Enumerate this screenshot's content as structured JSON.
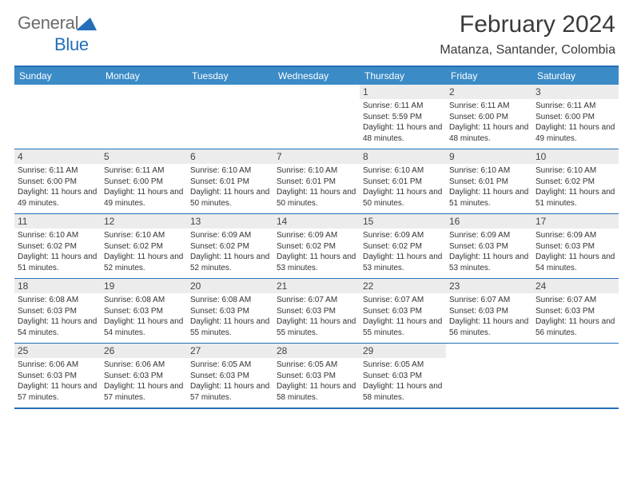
{
  "logo": {
    "word1": "General",
    "word2": "Blue"
  },
  "header": {
    "month_title": "February 2024",
    "location": "Matanza, Santander, Colombia"
  },
  "colors": {
    "accent": "#246eb9",
    "header_bg": "#3b8bc7",
    "daynum_bg": "#ececec",
    "text": "#333333",
    "logo_gray": "#6b6b6b",
    "background": "#ffffff"
  },
  "dow": [
    "Sunday",
    "Monday",
    "Tuesday",
    "Wednesday",
    "Thursday",
    "Friday",
    "Saturday"
  ],
  "weeks": [
    [
      {
        "n": "",
        "sr": "",
        "ss": "",
        "dl": ""
      },
      {
        "n": "",
        "sr": "",
        "ss": "",
        "dl": ""
      },
      {
        "n": "",
        "sr": "",
        "ss": "",
        "dl": ""
      },
      {
        "n": "",
        "sr": "",
        "ss": "",
        "dl": ""
      },
      {
        "n": "1",
        "sr": "Sunrise: 6:11 AM",
        "ss": "Sunset: 5:59 PM",
        "dl": "Daylight: 11 hours and 48 minutes."
      },
      {
        "n": "2",
        "sr": "Sunrise: 6:11 AM",
        "ss": "Sunset: 6:00 PM",
        "dl": "Daylight: 11 hours and 48 minutes."
      },
      {
        "n": "3",
        "sr": "Sunrise: 6:11 AM",
        "ss": "Sunset: 6:00 PM",
        "dl": "Daylight: 11 hours and 49 minutes."
      }
    ],
    [
      {
        "n": "4",
        "sr": "Sunrise: 6:11 AM",
        "ss": "Sunset: 6:00 PM",
        "dl": "Daylight: 11 hours and 49 minutes."
      },
      {
        "n": "5",
        "sr": "Sunrise: 6:11 AM",
        "ss": "Sunset: 6:00 PM",
        "dl": "Daylight: 11 hours and 49 minutes."
      },
      {
        "n": "6",
        "sr": "Sunrise: 6:10 AM",
        "ss": "Sunset: 6:01 PM",
        "dl": "Daylight: 11 hours and 50 minutes."
      },
      {
        "n": "7",
        "sr": "Sunrise: 6:10 AM",
        "ss": "Sunset: 6:01 PM",
        "dl": "Daylight: 11 hours and 50 minutes."
      },
      {
        "n": "8",
        "sr": "Sunrise: 6:10 AM",
        "ss": "Sunset: 6:01 PM",
        "dl": "Daylight: 11 hours and 50 minutes."
      },
      {
        "n": "9",
        "sr": "Sunrise: 6:10 AM",
        "ss": "Sunset: 6:01 PM",
        "dl": "Daylight: 11 hours and 51 minutes."
      },
      {
        "n": "10",
        "sr": "Sunrise: 6:10 AM",
        "ss": "Sunset: 6:02 PM",
        "dl": "Daylight: 11 hours and 51 minutes."
      }
    ],
    [
      {
        "n": "11",
        "sr": "Sunrise: 6:10 AM",
        "ss": "Sunset: 6:02 PM",
        "dl": "Daylight: 11 hours and 51 minutes."
      },
      {
        "n": "12",
        "sr": "Sunrise: 6:10 AM",
        "ss": "Sunset: 6:02 PM",
        "dl": "Daylight: 11 hours and 52 minutes."
      },
      {
        "n": "13",
        "sr": "Sunrise: 6:09 AM",
        "ss": "Sunset: 6:02 PM",
        "dl": "Daylight: 11 hours and 52 minutes."
      },
      {
        "n": "14",
        "sr": "Sunrise: 6:09 AM",
        "ss": "Sunset: 6:02 PM",
        "dl": "Daylight: 11 hours and 53 minutes."
      },
      {
        "n": "15",
        "sr": "Sunrise: 6:09 AM",
        "ss": "Sunset: 6:02 PM",
        "dl": "Daylight: 11 hours and 53 minutes."
      },
      {
        "n": "16",
        "sr": "Sunrise: 6:09 AM",
        "ss": "Sunset: 6:03 PM",
        "dl": "Daylight: 11 hours and 53 minutes."
      },
      {
        "n": "17",
        "sr": "Sunrise: 6:09 AM",
        "ss": "Sunset: 6:03 PM",
        "dl": "Daylight: 11 hours and 54 minutes."
      }
    ],
    [
      {
        "n": "18",
        "sr": "Sunrise: 6:08 AM",
        "ss": "Sunset: 6:03 PM",
        "dl": "Daylight: 11 hours and 54 minutes."
      },
      {
        "n": "19",
        "sr": "Sunrise: 6:08 AM",
        "ss": "Sunset: 6:03 PM",
        "dl": "Daylight: 11 hours and 54 minutes."
      },
      {
        "n": "20",
        "sr": "Sunrise: 6:08 AM",
        "ss": "Sunset: 6:03 PM",
        "dl": "Daylight: 11 hours and 55 minutes."
      },
      {
        "n": "21",
        "sr": "Sunrise: 6:07 AM",
        "ss": "Sunset: 6:03 PM",
        "dl": "Daylight: 11 hours and 55 minutes."
      },
      {
        "n": "22",
        "sr": "Sunrise: 6:07 AM",
        "ss": "Sunset: 6:03 PM",
        "dl": "Daylight: 11 hours and 55 minutes."
      },
      {
        "n": "23",
        "sr": "Sunrise: 6:07 AM",
        "ss": "Sunset: 6:03 PM",
        "dl": "Daylight: 11 hours and 56 minutes."
      },
      {
        "n": "24",
        "sr": "Sunrise: 6:07 AM",
        "ss": "Sunset: 6:03 PM",
        "dl": "Daylight: 11 hours and 56 minutes."
      }
    ],
    [
      {
        "n": "25",
        "sr": "Sunrise: 6:06 AM",
        "ss": "Sunset: 6:03 PM",
        "dl": "Daylight: 11 hours and 57 minutes."
      },
      {
        "n": "26",
        "sr": "Sunrise: 6:06 AM",
        "ss": "Sunset: 6:03 PM",
        "dl": "Daylight: 11 hours and 57 minutes."
      },
      {
        "n": "27",
        "sr": "Sunrise: 6:05 AM",
        "ss": "Sunset: 6:03 PM",
        "dl": "Daylight: 11 hours and 57 minutes."
      },
      {
        "n": "28",
        "sr": "Sunrise: 6:05 AM",
        "ss": "Sunset: 6:03 PM",
        "dl": "Daylight: 11 hours and 58 minutes."
      },
      {
        "n": "29",
        "sr": "Sunrise: 6:05 AM",
        "ss": "Sunset: 6:03 PM",
        "dl": "Daylight: 11 hours and 58 minutes."
      },
      {
        "n": "",
        "sr": "",
        "ss": "",
        "dl": ""
      },
      {
        "n": "",
        "sr": "",
        "ss": "",
        "dl": ""
      }
    ]
  ]
}
